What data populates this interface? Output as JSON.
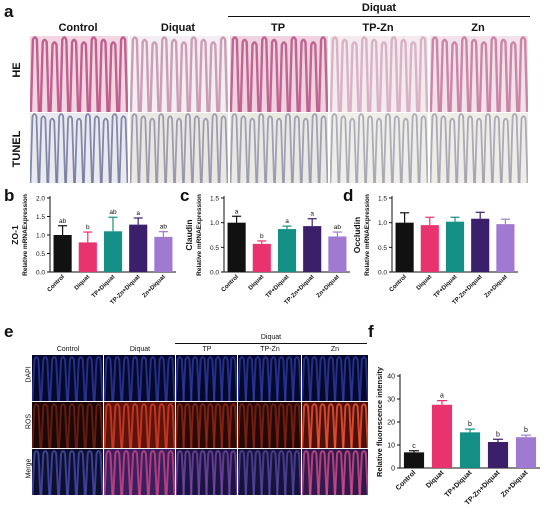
{
  "panel_letters": [
    "a",
    "b",
    "c",
    "d",
    "e",
    "f"
  ],
  "panel_a": {
    "group_header": "Diquat",
    "columns": [
      "Control",
      "Diquat",
      "TP",
      "TP-Zn",
      "Zn"
    ],
    "rows": [
      "HE",
      "TUNEL"
    ]
  },
  "panel_e": {
    "group_header": "Diquat",
    "columns": [
      "Control",
      "Diquat",
      "TP",
      "TP-Zn",
      "Zn"
    ],
    "rows": [
      "DAPI",
      "ROS",
      "Merge"
    ]
  },
  "colors": {
    "Control": "#111111",
    "Diquat": "#e8336f",
    "TP+Diquat": "#138f86",
    "TP-Zn+Diquat": "#3b1f6b",
    "Zn+Diquat": "#a07ad0"
  },
  "chart_data": [
    {
      "panel": "b",
      "type": "bar",
      "title": "ZO-1",
      "ylabel": "Relative mRNAExpression",
      "categories": [
        "Control",
        "Diquat",
        "TP+Diquat",
        "TP-Zn+Diquat",
        "Zn+Diquat"
      ],
      "values": [
        1.0,
        0.8,
        1.1,
        1.28,
        0.95
      ],
      "errors": [
        0.25,
        0.28,
        0.38,
        0.18,
        0.14
      ],
      "labels": [
        "ab",
        "b",
        "ab",
        "a",
        "ab"
      ],
      "ylim": [
        0,
        2.0
      ],
      "yticks": [
        "0.0",
        "0.5",
        "1.0",
        "1.5",
        "2.0"
      ]
    },
    {
      "panel": "c",
      "type": "bar",
      "title": "Claudin",
      "ylabel": "Relative mRNAExpression",
      "categories": [
        "Control",
        "Diquat",
        "TP+Diquat",
        "TP-Zn+Diquat",
        "Zn+Diquat"
      ],
      "values": [
        1.0,
        0.57,
        0.87,
        0.93,
        0.72
      ],
      "errors": [
        0.13,
        0.06,
        0.06,
        0.15,
        0.09
      ],
      "labels": [
        "a",
        "b",
        "a",
        "a",
        "ab"
      ],
      "ylim": [
        0,
        1.5
      ],
      "yticks": [
        "0.0",
        "0.5",
        "1.0",
        "1.5"
      ]
    },
    {
      "panel": "d",
      "type": "bar",
      "title": "Occludin",
      "ylabel": "Relative mRNAExpression",
      "categories": [
        "Control",
        "Diquat",
        "TP+Diquat",
        "TP-Zn+Diquat",
        "Zn+Diquat"
      ],
      "values": [
        1.0,
        0.95,
        1.02,
        1.08,
        0.97
      ],
      "errors": [
        0.2,
        0.16,
        0.09,
        0.13,
        0.1
      ],
      "labels": [
        "",
        "",
        "",
        "",
        ""
      ],
      "ylim": [
        0,
        1.5
      ],
      "yticks": [
        "0.0",
        "0.5",
        "1.0",
        "1.5"
      ]
    },
    {
      "panel": "f",
      "type": "bar",
      "title": "",
      "ylabel": "Relative fluorescence intensity",
      "categories": [
        "Control",
        "Diquat",
        "TP+Diquat",
        "TP-Zn+Diquat",
        "Zn+Diquat"
      ],
      "values": [
        6.8,
        27.5,
        15.5,
        11.3,
        13.4
      ],
      "errors": [
        0.7,
        1.8,
        1.4,
        1.2,
        0.9
      ],
      "labels": [
        "c",
        "a",
        "b",
        "b",
        "b"
      ],
      "ylim": [
        0,
        40
      ],
      "yticks": [
        "0",
        "10",
        "20",
        "30",
        "40"
      ]
    }
  ]
}
